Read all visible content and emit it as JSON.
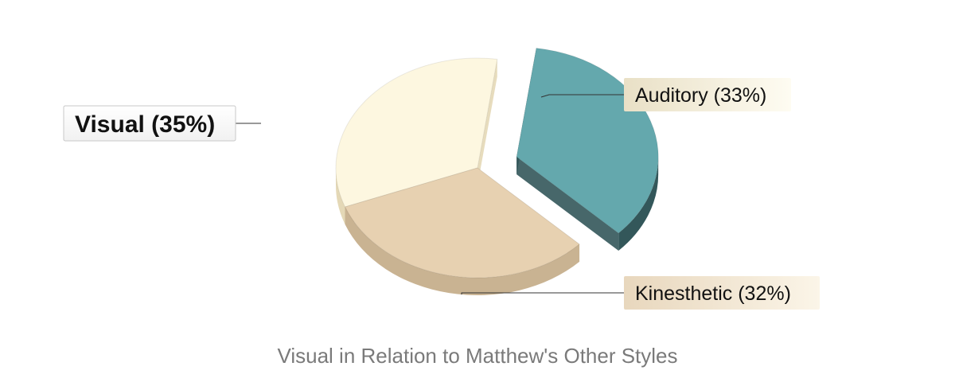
{
  "chart_data": {
    "type": "pie",
    "title": "Visual in Relation to Matthew's Other Styles",
    "slices": [
      {
        "name": "Visual",
        "value": 35,
        "label": "Visual (35%)",
        "color": "#64a8ad",
        "side": "#33575a",
        "exploded": true,
        "highlight": true
      },
      {
        "name": "Kinesthetic",
        "value": 32,
        "label": "Kinesthetic (32%)",
        "color": "#e7d1b1",
        "side": "#c9b392",
        "exploded": false,
        "highlight": false
      },
      {
        "name": "Auditory",
        "value": 33,
        "label": "Auditory (33%)",
        "color": "#fdf7e0",
        "side": "#e4d8b6",
        "exploded": false,
        "highlight": false
      }
    ],
    "legend": "none",
    "three_d": true
  }
}
